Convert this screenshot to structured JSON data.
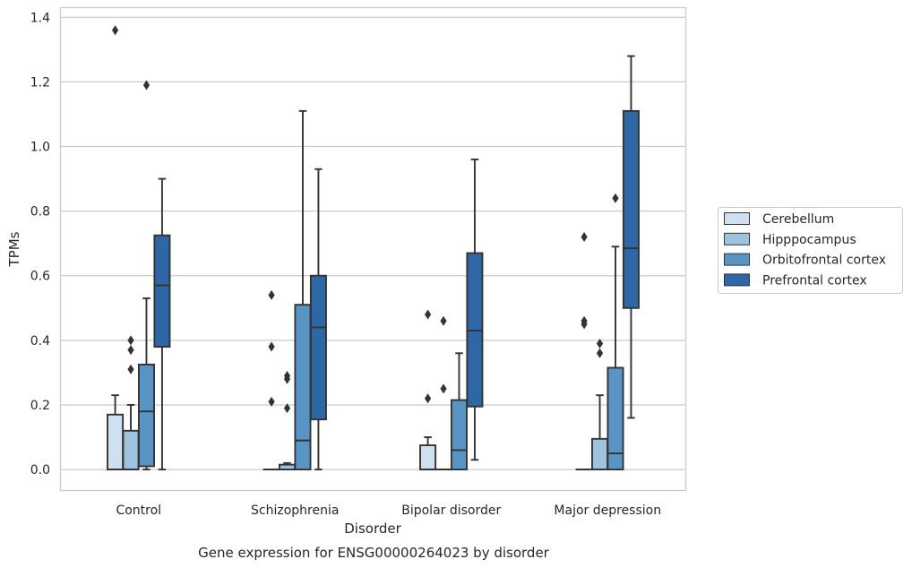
{
  "chart_data": {
    "type": "boxplot",
    "title": "Gene expression for ENSG00000264023 by disorder",
    "xlabel": "Disorder",
    "ylabel": "TPMs",
    "ylim": [
      -0.065,
      1.43
    ],
    "yticks": [
      "0.0",
      "0.2",
      "0.4",
      "0.6",
      "0.8",
      "1.0",
      "1.2",
      "1.4"
    ],
    "grid": "horizontal",
    "legend_position": "right",
    "categories": [
      "Control",
      "Schizophrenia",
      "Bipolar disorder",
      "Major depression"
    ],
    "series": [
      {
        "name": "Cerebellum",
        "color": "#cfe0f0",
        "boxes": [
          {
            "whislo": 0.0,
            "q1": 0.0,
            "med": 0.0,
            "q3": 0.17,
            "whishi": 0.23,
            "fliers": [
              1.36
            ]
          },
          {
            "whislo": 0.0,
            "q1": 0.0,
            "med": 0.0,
            "q3": 0.0,
            "whishi": 0.0,
            "fliers": [
              0.54,
              0.38,
              0.21
            ]
          },
          {
            "whislo": 0.0,
            "q1": 0.0,
            "med": 0.0,
            "q3": 0.075,
            "whishi": 0.1,
            "fliers": [
              0.48,
              0.22
            ]
          },
          {
            "whislo": 0.0,
            "q1": 0.0,
            "med": 0.0,
            "q3": 0.0,
            "whishi": 0.0,
            "fliers": [
              0.72,
              0.46,
              0.45
            ]
          }
        ]
      },
      {
        "name": "Hipppocampus",
        "color": "#9dc3de",
        "boxes": [
          {
            "whislo": 0.0,
            "q1": 0.0,
            "med": 0.0,
            "q3": 0.12,
            "whishi": 0.2,
            "fliers": [
              0.4,
              0.37,
              0.31
            ]
          },
          {
            "whislo": 0.0,
            "q1": 0.0,
            "med": 0.0,
            "q3": 0.015,
            "whishi": 0.02,
            "fliers": [
              0.29,
              0.28,
              0.19
            ]
          },
          {
            "whislo": 0.0,
            "q1": 0.0,
            "med": 0.0,
            "q3": 0.0,
            "whishi": 0.0,
            "fliers": [
              0.46,
              0.25
            ]
          },
          {
            "whislo": 0.0,
            "q1": 0.0,
            "med": 0.0,
            "q3": 0.095,
            "whishi": 0.23,
            "fliers": [
              0.39,
              0.36
            ]
          }
        ]
      },
      {
        "name": "Orbitofrontal cortex",
        "color": "#5895c5",
        "boxes": [
          {
            "whislo": 0.0,
            "q1": 0.01,
            "med": 0.18,
            "q3": 0.325,
            "whishi": 0.53,
            "fliers": [
              1.19
            ]
          },
          {
            "whislo": 0.0,
            "q1": 0.0,
            "med": 0.09,
            "q3": 0.51,
            "whishi": 1.11,
            "fliers": []
          },
          {
            "whislo": 0.0,
            "q1": 0.0,
            "med": 0.06,
            "q3": 0.215,
            "whishi": 0.36,
            "fliers": []
          },
          {
            "whislo": 0.0,
            "q1": 0.0,
            "med": 0.05,
            "q3": 0.315,
            "whishi": 0.69,
            "fliers": [
              0.84
            ]
          }
        ]
      },
      {
        "name": "Prefrontal cortex",
        "color": "#2d67a6",
        "boxes": [
          {
            "whislo": 0.0,
            "q1": 0.38,
            "med": 0.57,
            "q3": 0.725,
            "whishi": 0.9,
            "fliers": []
          },
          {
            "whislo": 0.0,
            "q1": 0.155,
            "med": 0.44,
            "q3": 0.6,
            "whishi": 0.93,
            "fliers": []
          },
          {
            "whislo": 0.03,
            "q1": 0.195,
            "med": 0.43,
            "q3": 0.67,
            "whishi": 0.96,
            "fliers": []
          },
          {
            "whislo": 0.16,
            "q1": 0.5,
            "med": 0.685,
            "q3": 1.11,
            "whishi": 1.28,
            "fliers": []
          }
        ]
      }
    ]
  }
}
